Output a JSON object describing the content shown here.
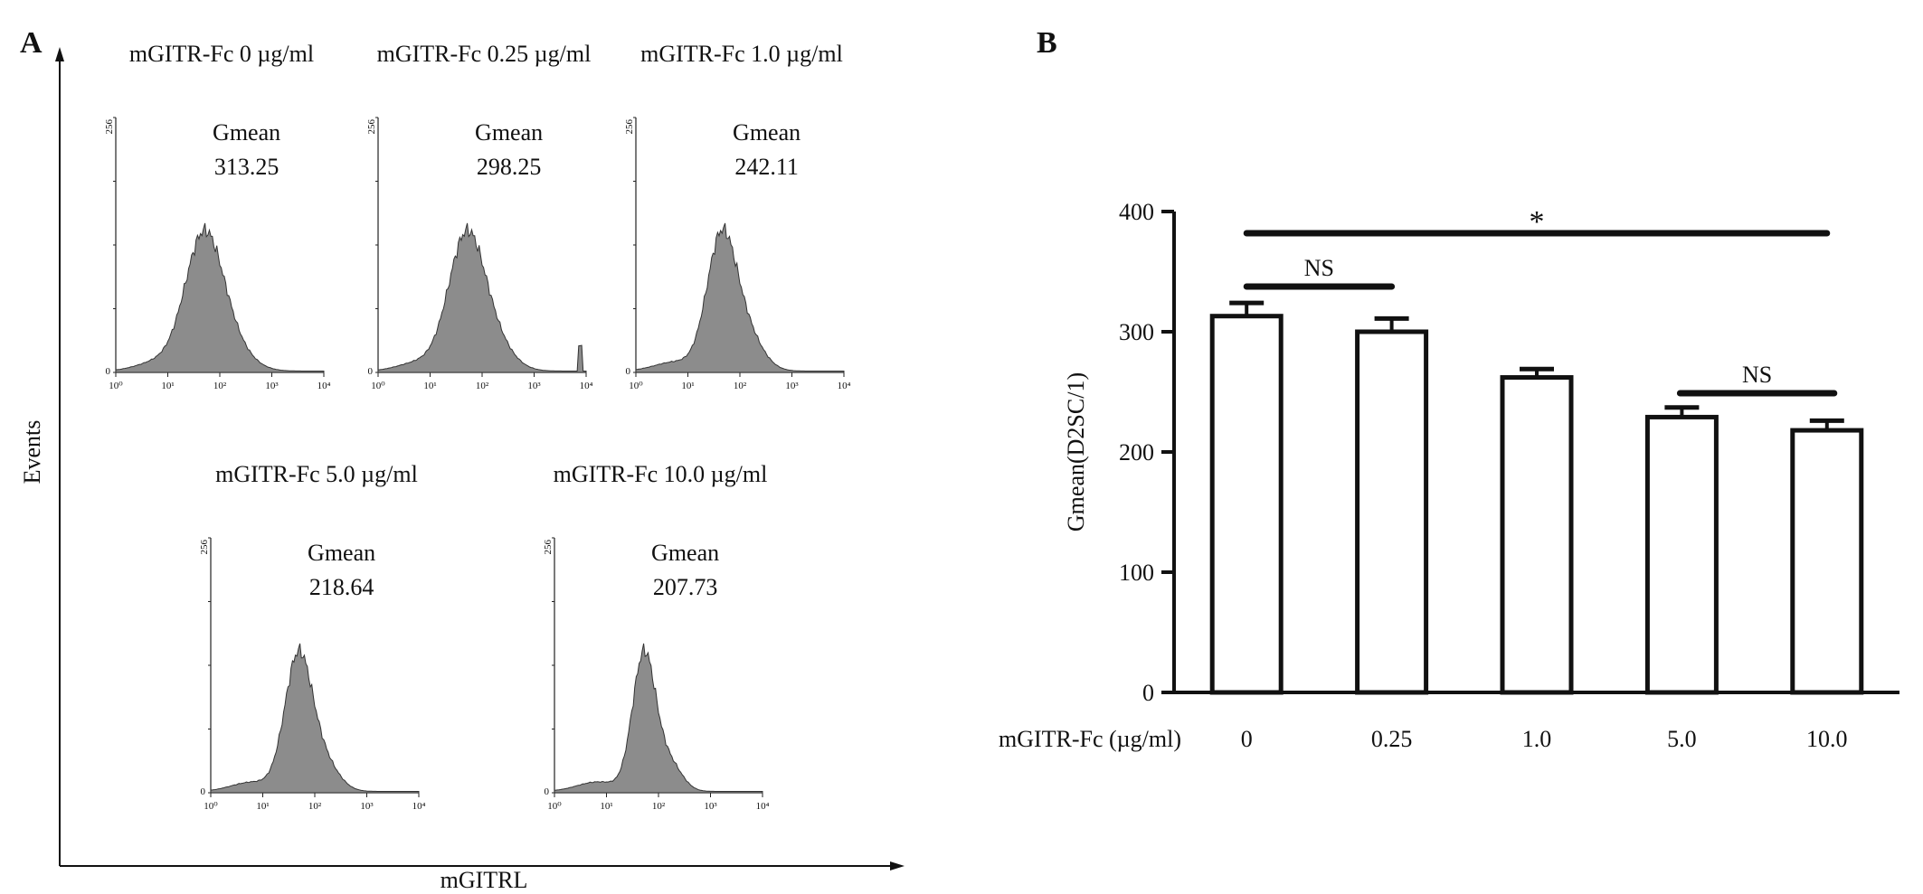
{
  "panel_a": {
    "label": "A",
    "y_axis_label": "Events",
    "x_axis_label": "mGITRL",
    "hist_y_max_label": "256",
    "hist_y_min_label": "0",
    "hist_x_ticks": [
      "10⁰",
      "10¹",
      "10²",
      "10³",
      "10⁴"
    ],
    "histograms": [
      {
        "title": "mGITR-Fc 0 µg/ml",
        "stat_label": "Gmean",
        "stat_value": "313.25"
      },
      {
        "title": "mGITR-Fc 0.25 µg/ml",
        "stat_label": "Gmean",
        "stat_value": "298.25"
      },
      {
        "title": "mGITR-Fc 1.0 µg/ml",
        "stat_label": "Gmean",
        "stat_value": "242.11"
      },
      {
        "title": "mGITR-Fc 5.0 µg/ml",
        "stat_label": "Gmean",
        "stat_value": "218.64"
      },
      {
        "title": "mGITR-Fc 10.0 µg/ml",
        "stat_label": "Gmean",
        "stat_value": "207.73"
      }
    ]
  },
  "panel_b": {
    "label": "B",
    "significance": [
      {
        "text": "*",
        "from": "0",
        "to": "10.0"
      },
      {
        "text": "NS",
        "from": "0",
        "to": "0.25"
      },
      {
        "text": "NS",
        "from": "5.0",
        "to": "10.0"
      }
    ]
  },
  "chart_data": {
    "type": "bar",
    "title": "",
    "xlabel": "mGITR-Fc (µg/ml)",
    "ylabel": "Gmean(D2SC/1)",
    "categories": [
      "0",
      "0.25",
      "1.0",
      "5.0",
      "10.0"
    ],
    "values": [
      313,
      300,
      262,
      229,
      218
    ],
    "errors": [
      11,
      11,
      7,
      8,
      8
    ],
    "ylim": [
      0,
      400
    ],
    "yticks": [
      0,
      100,
      200,
      300,
      400
    ],
    "grid": false,
    "colors": {
      "bar_fill": "#ffffff",
      "bar_stroke": "#111111",
      "hist_fill": "#8c8c8c"
    }
  }
}
